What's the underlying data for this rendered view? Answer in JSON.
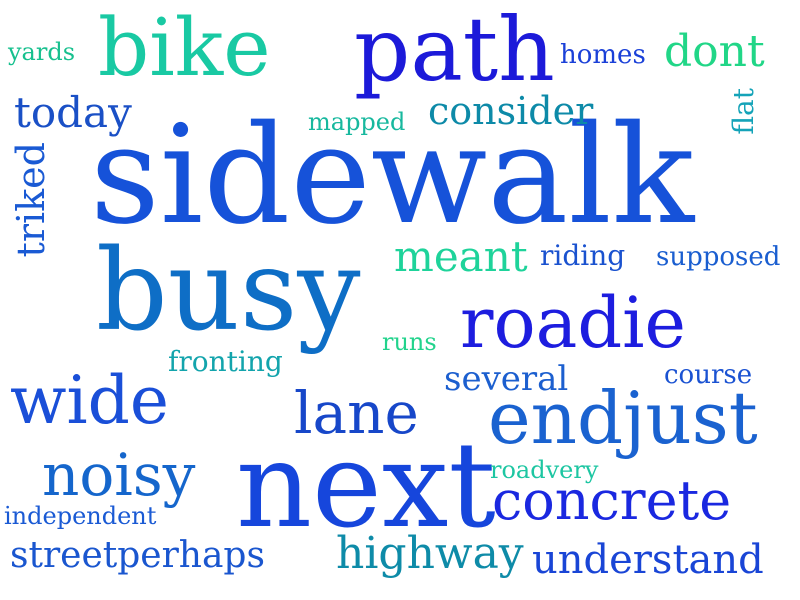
{
  "words": {
    "sidewalk": {
      "text": "sidewalk",
      "color": "#1652d9"
    },
    "busy": {
      "text": "busy",
      "color": "#0e6ec6"
    },
    "next": {
      "text": "next",
      "color": "#1646dc"
    },
    "path": {
      "text": "path",
      "color": "#1c1ad9"
    },
    "bike": {
      "text": "bike",
      "color": "#19c9a3"
    },
    "roadie": {
      "text": "roadie",
      "color": "#1d1ddf"
    },
    "endjust": {
      "text": "endjust",
      "color": "#1a62d0"
    },
    "wide": {
      "text": "wide",
      "color": "#1a4fd8"
    },
    "lane": {
      "text": "lane",
      "color": "#1747c9"
    },
    "noisy": {
      "text": "noisy",
      "color": "#1566cc"
    },
    "concrete": {
      "text": "concrete",
      "color": "#1a28e0"
    },
    "today": {
      "text": "today",
      "color": "#1a50c6"
    },
    "consider": {
      "text": "consider",
      "color": "#0d8aa8"
    },
    "yards": {
      "text": "yards",
      "color": "#17c08e"
    },
    "homes": {
      "text": "homes",
      "color": "#1a40d8"
    },
    "dont": {
      "text": "dont",
      "color": "#21d687"
    },
    "mapped": {
      "text": "mapped",
      "color": "#17b89e"
    },
    "flat": {
      "text": "flat",
      "color": "#14a3b8"
    },
    "triked": {
      "text": "triked",
      "color": "#1a5ad4"
    },
    "meant": {
      "text": "meant",
      "color": "#1ed39a"
    },
    "riding": {
      "text": "riding",
      "color": "#1a52cf"
    },
    "supposed": {
      "text": "supposed",
      "color": "#1a5ed0"
    },
    "runs": {
      "text": "runs",
      "color": "#22d38c"
    },
    "fronting": {
      "text": "fronting",
      "color": "#13a4ac"
    },
    "several": {
      "text": "several",
      "color": "#1c5fcf"
    },
    "course": {
      "text": "course",
      "color": "#1a52d2"
    },
    "roadvery": {
      "text": "roadvery",
      "color": "#1dc6a2"
    },
    "independent": {
      "text": "independent",
      "color": "#1a5ad4"
    },
    "streetperhaps": {
      "text": "streetperhaps",
      "color": "#1a56cf"
    },
    "highway": {
      "text": "highway",
      "color": "#0e8ba8"
    },
    "understand": {
      "text": "understand",
      "color": "#1945d6"
    }
  }
}
